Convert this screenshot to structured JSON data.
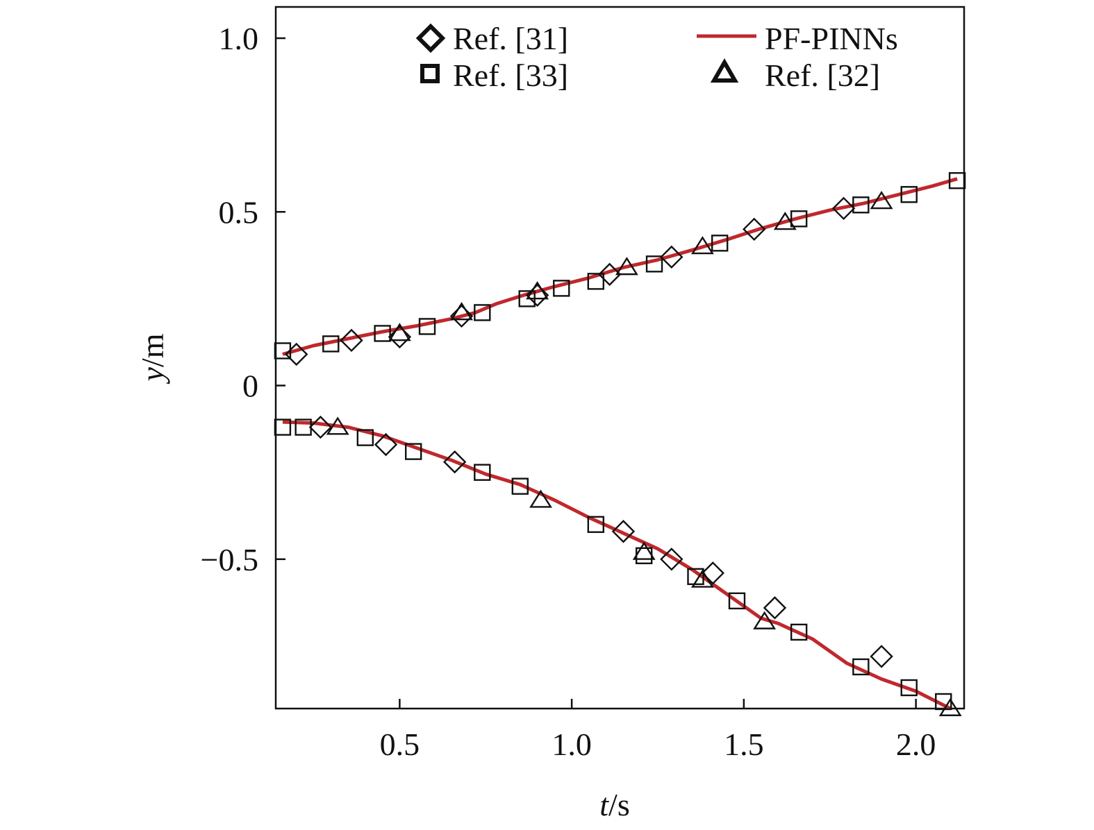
{
  "chart_data": {
    "type": "line",
    "title": "",
    "xlabel": {
      "var": "t",
      "unit": "/s"
    },
    "ylabel": {
      "var": "y",
      "unit": "/m"
    },
    "xlim": [
      0.14,
      2.14
    ],
    "ylim": [
      -0.93,
      1.09
    ],
    "xticks": [
      {
        "value": 0.5,
        "label": "0.5"
      },
      {
        "value": 1.0,
        "label": "1.0"
      },
      {
        "value": 1.5,
        "label": "1.5"
      },
      {
        "value": 2.0,
        "label": "2.0"
      }
    ],
    "yticks": [
      {
        "value": -0.5,
        "label": "−0.5"
      },
      {
        "value": 0,
        "label": "0"
      },
      {
        "value": 0.5,
        "label": "0.5"
      },
      {
        "value": 1.0,
        "label": "1.0"
      }
    ],
    "grid": false,
    "legend_position": "top",
    "legend": [
      {
        "label": "Ref. [31]",
        "marker": "diamond"
      },
      {
        "label": "PF-PINNs",
        "marker": "line",
        "color": "#c0282d"
      },
      {
        "label": "Ref. [33]",
        "marker": "square"
      },
      {
        "label": "Ref. [32]",
        "marker": "triangle"
      }
    ],
    "series": [
      {
        "name": "PF-PINNs",
        "style": "line",
        "color": "#c0282d",
        "curves": [
          [
            [
              0.16,
              0.09
            ],
            [
              0.25,
              0.115
            ],
            [
              0.35,
              0.135
            ],
            [
              0.45,
              0.155
            ],
            [
              0.55,
              0.172
            ],
            [
              0.65,
              0.192
            ],
            [
              0.72,
              0.21
            ],
            [
              0.78,
              0.235
            ],
            [
              0.86,
              0.26
            ],
            [
              0.95,
              0.285
            ],
            [
              1.05,
              0.31
            ],
            [
              1.15,
              0.34
            ],
            [
              1.25,
              0.362
            ],
            [
              1.35,
              0.39
            ],
            [
              1.45,
              0.42
            ],
            [
              1.55,
              0.452
            ],
            [
              1.65,
              0.48
            ],
            [
              1.75,
              0.505
            ],
            [
              1.85,
              0.525
            ],
            [
              1.95,
              0.55
            ],
            [
              2.05,
              0.575
            ],
            [
              2.12,
              0.595
            ]
          ],
          [
            [
              0.16,
              -0.105
            ],
            [
              0.25,
              -0.108
            ],
            [
              0.35,
              -0.12
            ],
            [
              0.45,
              -0.145
            ],
            [
              0.55,
              -0.18
            ],
            [
              0.65,
              -0.215
            ],
            [
              0.75,
              -0.255
            ],
            [
              0.85,
              -0.285
            ],
            [
              0.95,
              -0.33
            ],
            [
              1.05,
              -0.38
            ],
            [
              1.15,
              -0.425
            ],
            [
              1.25,
              -0.47
            ],
            [
              1.35,
              -0.53
            ],
            [
              1.45,
              -0.6
            ],
            [
              1.55,
              -0.67
            ],
            [
              1.6,
              -0.685
            ],
            [
              1.7,
              -0.73
            ],
            [
              1.8,
              -0.8
            ],
            [
              1.9,
              -0.845
            ],
            [
              2.0,
              -0.88
            ],
            [
              2.1,
              -0.93
            ]
          ]
        ]
      },
      {
        "name": "Ref. [31]",
        "style": "marker",
        "marker": "diamond",
        "points": [
          [
            0.2,
            0.09
          ],
          [
            0.36,
            0.13
          ],
          [
            0.5,
            0.14
          ],
          [
            0.68,
            0.2
          ],
          [
            0.9,
            0.26
          ],
          [
            1.11,
            0.32
          ],
          [
            1.29,
            0.37
          ],
          [
            1.53,
            0.45
          ],
          [
            1.79,
            0.51
          ],
          [
            0.27,
            -0.12
          ],
          [
            0.46,
            -0.17
          ],
          [
            0.66,
            -0.22
          ],
          [
            1.15,
            -0.42
          ],
          [
            1.29,
            -0.5
          ],
          [
            1.41,
            -0.54
          ],
          [
            1.59,
            -0.64
          ],
          [
            1.9,
            -0.78
          ]
        ]
      },
      {
        "name": "Ref. [33]",
        "style": "marker",
        "marker": "square",
        "points": [
          [
            0.16,
            0.1
          ],
          [
            0.3,
            0.12
          ],
          [
            0.45,
            0.15
          ],
          [
            0.58,
            0.17
          ],
          [
            0.74,
            0.21
          ],
          [
            0.87,
            0.25
          ],
          [
            0.97,
            0.28
          ],
          [
            1.07,
            0.3
          ],
          [
            1.24,
            0.35
          ],
          [
            1.43,
            0.41
          ],
          [
            1.66,
            0.48
          ],
          [
            1.84,
            0.52
          ],
          [
            1.98,
            0.55
          ],
          [
            2.12,
            0.59
          ],
          [
            0.16,
            -0.12
          ],
          [
            0.22,
            -0.12
          ],
          [
            0.4,
            -0.15
          ],
          [
            0.54,
            -0.19
          ],
          [
            0.74,
            -0.25
          ],
          [
            0.85,
            -0.29
          ],
          [
            1.07,
            -0.4
          ],
          [
            1.21,
            -0.49
          ],
          [
            1.36,
            -0.55
          ],
          [
            1.48,
            -0.62
          ],
          [
            1.66,
            -0.71
          ],
          [
            1.84,
            -0.81
          ],
          [
            1.98,
            -0.87
          ],
          [
            2.08,
            -0.91
          ]
        ]
      },
      {
        "name": "Ref. [32]",
        "style": "marker",
        "marker": "triangle",
        "points": [
          [
            0.5,
            0.15
          ],
          [
            0.68,
            0.21
          ],
          [
            0.9,
            0.27
          ],
          [
            1.16,
            0.34
          ],
          [
            1.38,
            0.4
          ],
          [
            1.62,
            0.47
          ],
          [
            1.9,
            0.53
          ],
          [
            0.32,
            -0.12
          ],
          [
            0.91,
            -0.33
          ],
          [
            1.21,
            -0.48
          ],
          [
            1.38,
            -0.56
          ],
          [
            1.56,
            -0.68
          ],
          [
            2.1,
            -0.93
          ]
        ]
      }
    ]
  }
}
